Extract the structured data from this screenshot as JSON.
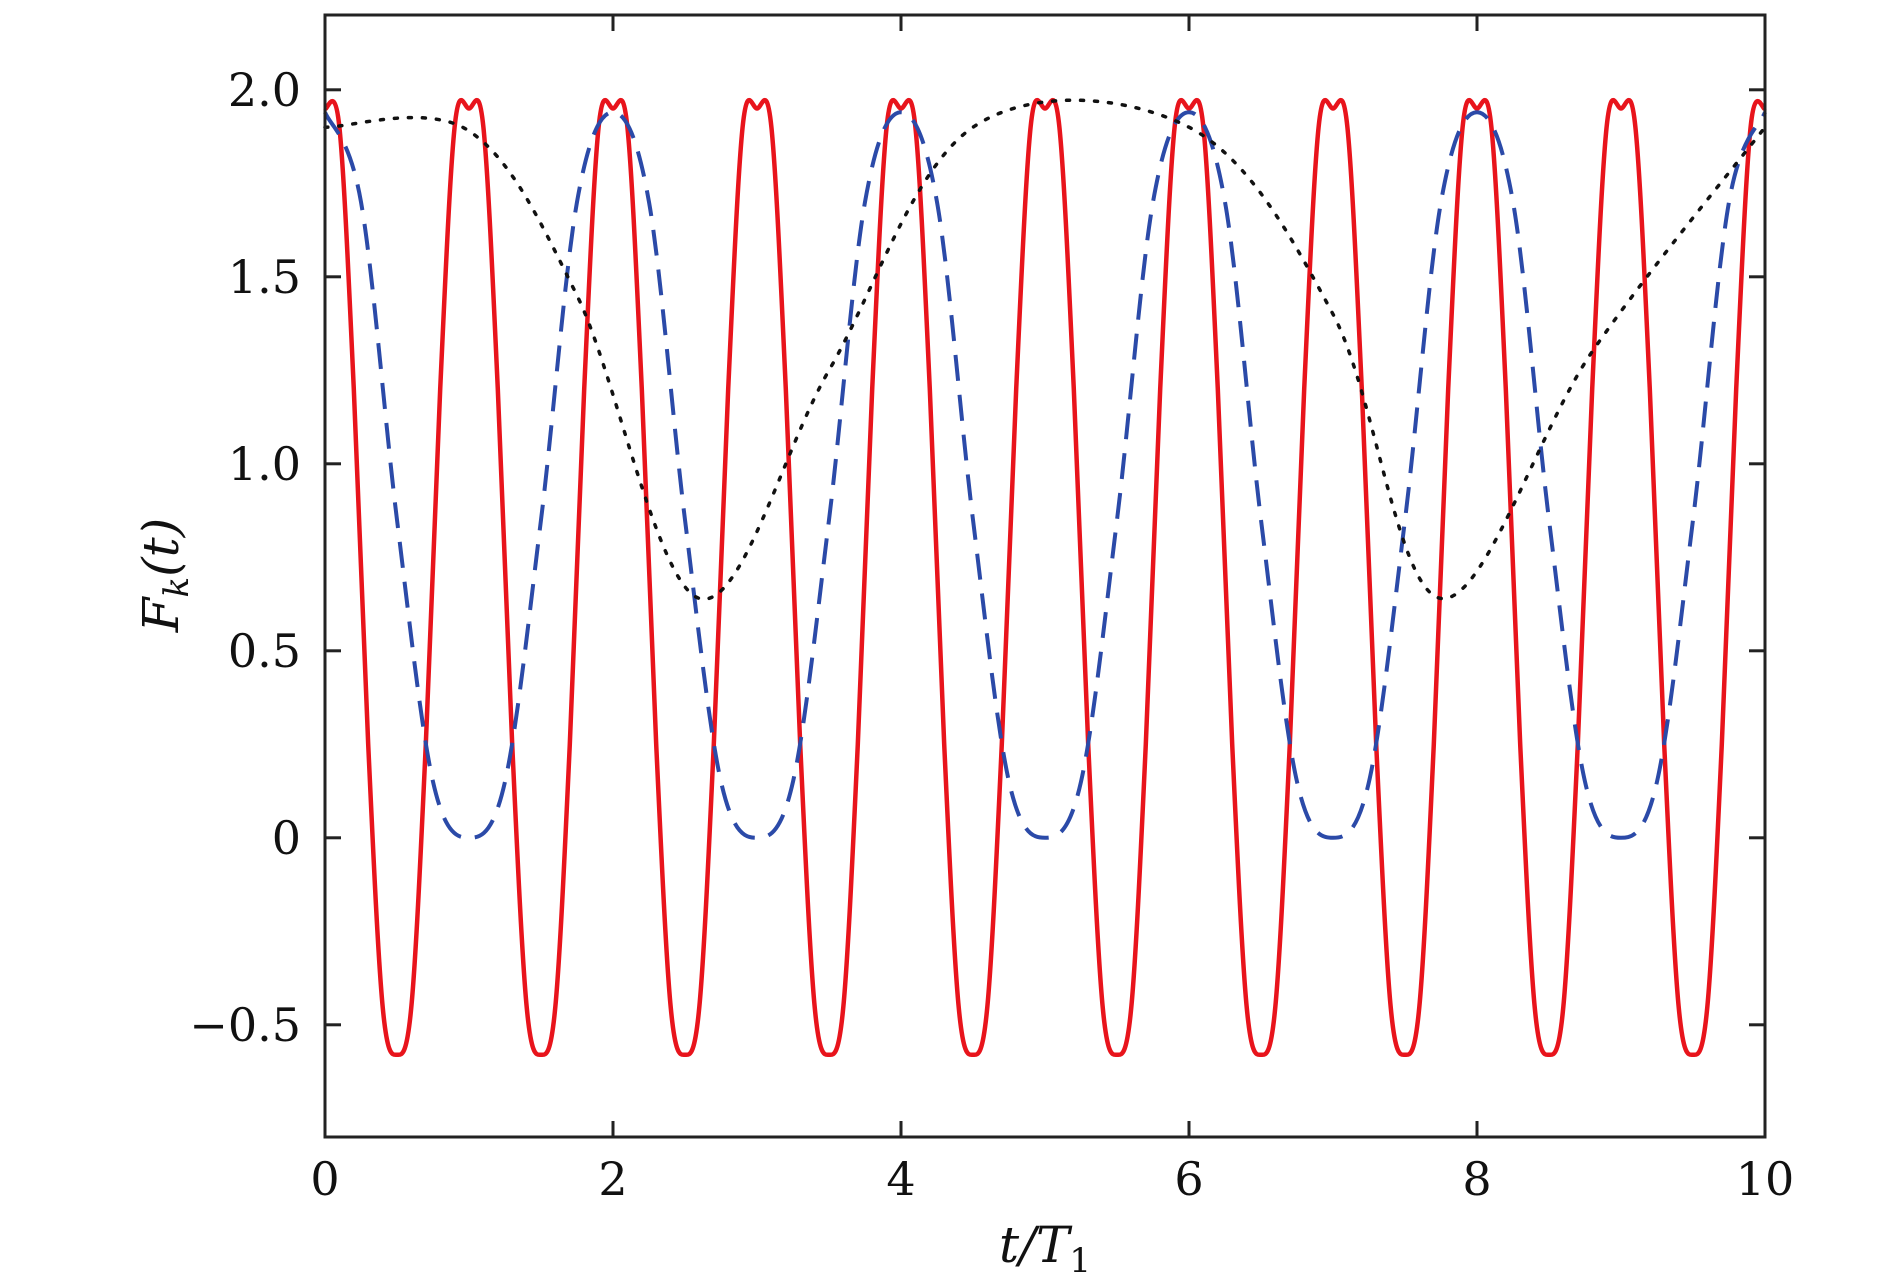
{
  "chart_data": {
    "type": "line",
    "xlabel": "t/T",
    "xlabel_sub": "1",
    "ylabel": "F",
    "ylabel_sub": "k",
    "ylabel_suffix": "(t)",
    "xlim": [
      0,
      10
    ],
    "ylim": [
      -0.8,
      2.2
    ],
    "xticks": [
      0,
      2,
      4,
      6,
      8,
      10
    ],
    "xtick_labels": [
      "0",
      "2",
      "4",
      "6",
      "8",
      "10"
    ],
    "yticks": [
      -0.5,
      0,
      0.5,
      1.0,
      1.5,
      2.0
    ],
    "ytick_labels": [
      "−0.5",
      "0",
      "0.5",
      "1.0",
      "1.5",
      "2.0"
    ],
    "grid": false,
    "series": [
      {
        "style": "solid",
        "color": "#e8141c",
        "period": 1.0,
        "min": -0.58,
        "max": 1.95,
        "x": [
          0,
          0.1,
          0.2,
          0.3,
          0.4,
          0.5,
          0.6,
          0.7,
          0.8,
          0.9,
          1.0
        ],
        "y": [
          1.95,
          1.9,
          1.2,
          0.25,
          -0.45,
          -0.58,
          -0.45,
          0.25,
          1.2,
          1.9,
          1.95
        ]
      },
      {
        "style": "dashed",
        "color": "#2b4aa8",
        "period": 2.0,
        "min": 0.0,
        "max": 1.94,
        "x": [
          0,
          0.25,
          0.5,
          0.75,
          1.0,
          1.25,
          1.5,
          1.75,
          2.0
        ],
        "y": [
          1.94,
          1.7,
          0.85,
          0.15,
          0.0,
          0.15,
          0.85,
          1.7,
          1.94
        ]
      },
      {
        "style": "dotted",
        "color": "#111111",
        "period": 5.2,
        "min": 0.64,
        "max": 1.9,
        "x": [
          0,
          1.0,
          1.75,
          2.6,
          3.5,
          4.5,
          6.0,
          7.0,
          7.75,
          8.8,
          10.0
        ],
        "y": [
          1.9,
          1.89,
          1.45,
          0.64,
          1.25,
          1.9,
          1.9,
          1.4,
          0.64,
          1.3,
          1.9
        ]
      }
    ]
  }
}
